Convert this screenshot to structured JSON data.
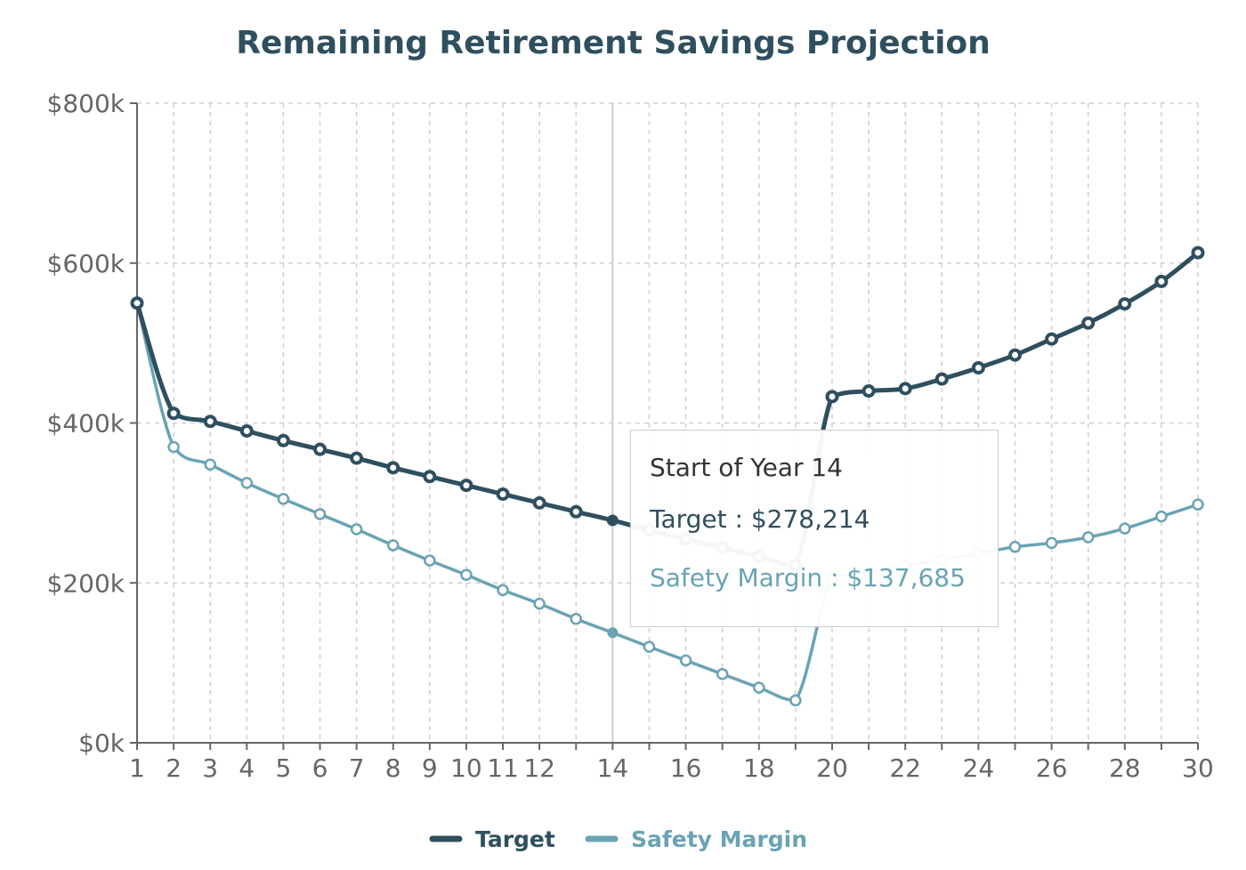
{
  "chart_data": {
    "type": "line",
    "title": "Remaining Retirement Savings Projection",
    "xlabel": "",
    "ylabel": "",
    "x": [
      1,
      2,
      3,
      4,
      5,
      6,
      7,
      8,
      9,
      10,
      11,
      12,
      13,
      14,
      15,
      16,
      17,
      18,
      19,
      20,
      21,
      22,
      23,
      24,
      25,
      26,
      27,
      28,
      29,
      30
    ],
    "x_tick_labels": [
      "1",
      "2",
      "3",
      "4",
      "5",
      "6",
      "7",
      "8",
      "9",
      "10",
      "11",
      "12",
      "14",
      "16",
      "18",
      "20",
      "22",
      "24",
      "26",
      "28",
      "30"
    ],
    "y_tick_labels": [
      "$0k",
      "$200k",
      "$400k",
      "$600k",
      "$800k"
    ],
    "ylim": [
      0,
      800000
    ],
    "grid": true,
    "legend_position": "bottom",
    "series": [
      {
        "name": "Target",
        "color": "#2f4f5f",
        "values": [
          550000,
          412000,
          402000,
          390000,
          378000,
          367000,
          356000,
          344000,
          333000,
          322000,
          311000,
          300000,
          289000,
          278214,
          266000,
          255000,
          244000,
          233000,
          222000,
          433000,
          440000,
          443000,
          455000,
          469000,
          485000,
          505000,
          525000,
          549000,
          577000,
          613000
        ]
      },
      {
        "name": "Safety Margin",
        "color": "#6aa3b4",
        "values": [
          550000,
          370000,
          348000,
          325000,
          305000,
          286000,
          267000,
          247000,
          228000,
          210000,
          191000,
          174000,
          155000,
          137685,
          120000,
          103000,
          86000,
          69000,
          53000,
          205000,
          213000,
          221000,
          229000,
          237000,
          245000,
          250000,
          257000,
          268000,
          283000,
          298000
        ]
      }
    ]
  },
  "tooltip": {
    "title": "Start of Year 14",
    "target_line": "Target : $278,214",
    "safety_line": "Safety Margin : $137,685"
  },
  "legend": {
    "items": [
      "Target",
      "Safety Margin"
    ]
  },
  "active_x": 14
}
